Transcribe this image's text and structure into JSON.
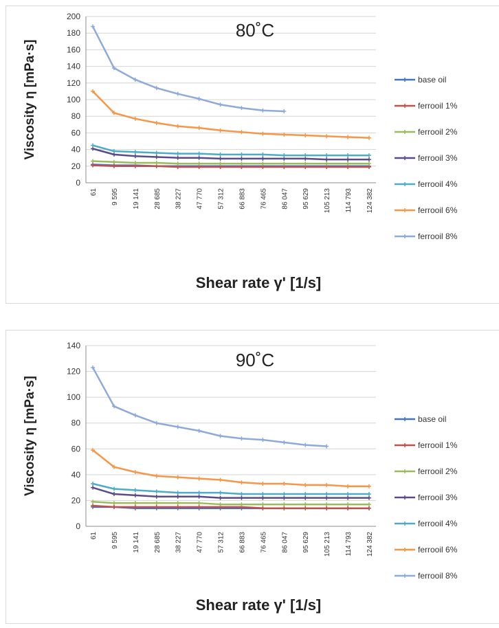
{
  "chart_data": [
    {
      "type": "line",
      "title": "80˚C",
      "xlabel": "Shear rate γ' [1/s]",
      "ylabel": "Viscosity η [mPa·s]",
      "ylim": [
        0,
        200
      ],
      "yticks": [
        0,
        20,
        40,
        60,
        80,
        100,
        120,
        140,
        160,
        180,
        200
      ],
      "categories": [
        "61",
        "9 595",
        "19 141",
        "28 685",
        "38 227",
        "47 770",
        "57 312",
        "66 883",
        "76 465",
        "86 047",
        "95 629",
        "105 213",
        "114 793",
        "124 382"
      ],
      "x": [
        61,
        9595,
        19141,
        28685,
        38227,
        47770,
        57312,
        66883,
        76465,
        86047,
        95629,
        105213,
        114793,
        124382
      ],
      "grid": true,
      "legend_position": "right",
      "series": [
        {
          "name": "base oil",
          "color": "#4472c4",
          "values": [
            22,
            21,
            21,
            20,
            20,
            20,
            20,
            20,
            20,
            20,
            20,
            20,
            20,
            20
          ]
        },
        {
          "name": "ferrooil 1%",
          "color": "#c0504d",
          "values": [
            21,
            20,
            20,
            20,
            19,
            19,
            19,
            19,
            19,
            19,
            19,
            19,
            19,
            19
          ]
        },
        {
          "name": "ferrooil 2%",
          "color": "#9bbb59",
          "values": [
            26,
            25,
            24,
            24,
            23,
            23,
            23,
            23,
            23,
            23,
            23,
            23,
            23,
            23
          ]
        },
        {
          "name": "ferrooil 3%",
          "color": "#5b4a8a",
          "values": [
            41,
            34,
            32,
            31,
            30,
            30,
            29,
            29,
            29,
            29,
            29,
            28,
            28,
            28
          ]
        },
        {
          "name": "ferrooil 4%",
          "color": "#4bacc6",
          "values": [
            45,
            38,
            37,
            36,
            35,
            35,
            34,
            34,
            34,
            33,
            33,
            33,
            33,
            33
          ]
        },
        {
          "name": "ferrooil 6%",
          "color": "#f79646",
          "values": [
            110,
            84,
            77,
            72,
            68,
            66,
            63,
            61,
            59,
            58,
            57,
            56,
            55,
            54
          ]
        },
        {
          "name": "ferrooil 8%",
          "color": "#8ea9db",
          "values": [
            188,
            138,
            124,
            114,
            107,
            101,
            94,
            90,
            87,
            86,
            null,
            null,
            null,
            null
          ]
        }
      ]
    },
    {
      "type": "line",
      "title": "90˚C",
      "xlabel": "Shear rate γ' [1/s]",
      "ylabel": "Viscosity η [mPa·s]",
      "ylim": [
        0,
        140
      ],
      "yticks": [
        0,
        20,
        40,
        60,
        80,
        100,
        120,
        140
      ],
      "categories": [
        "61",
        "9 595",
        "19 141",
        "28 685",
        "38 227",
        "47 770",
        "57 312",
        "66 883",
        "76 465",
        "86 047",
        "95 629",
        "105 213",
        "114 793",
        "124 382"
      ],
      "x": [
        61,
        9595,
        19141,
        28685,
        38227,
        47770,
        57312,
        66883,
        76465,
        86047,
        95629,
        105213,
        114793,
        124382
      ],
      "grid": true,
      "legend_position": "right",
      "series": [
        {
          "name": "base oil",
          "color": "#4472c4",
          "values": [
            15,
            15,
            14,
            14,
            14,
            14,
            14,
            14,
            14,
            14,
            14,
            14,
            14,
            14
          ]
        },
        {
          "name": "ferrooil 1%",
          "color": "#c0504d",
          "values": [
            16,
            15,
            15,
            15,
            15,
            15,
            15,
            15,
            14,
            14,
            14,
            14,
            14,
            14
          ]
        },
        {
          "name": "ferrooil 2%",
          "color": "#9bbb59",
          "values": [
            19,
            18,
            18,
            18,
            18,
            18,
            17,
            17,
            17,
            17,
            17,
            17,
            17,
            17
          ]
        },
        {
          "name": "ferrooil 3%",
          "color": "#5b4a8a",
          "values": [
            30,
            25,
            24,
            23,
            23,
            23,
            22,
            22,
            22,
            22,
            22,
            22,
            22,
            22
          ]
        },
        {
          "name": "ferrooil 4%",
          "color": "#4bacc6",
          "values": [
            33,
            29,
            28,
            27,
            26,
            26,
            26,
            25,
            25,
            25,
            25,
            25,
            25,
            25
          ]
        },
        {
          "name": "ferrooil 6%",
          "color": "#f79646",
          "values": [
            59,
            46,
            42,
            39,
            38,
            37,
            36,
            34,
            33,
            33,
            32,
            32,
            31,
            31
          ]
        },
        {
          "name": "ferrooil 8%",
          "color": "#8ea9db",
          "values": [
            123,
            93,
            86,
            80,
            77,
            74,
            70,
            68,
            67,
            65,
            63,
            62,
            null,
            null
          ]
        }
      ]
    }
  ]
}
